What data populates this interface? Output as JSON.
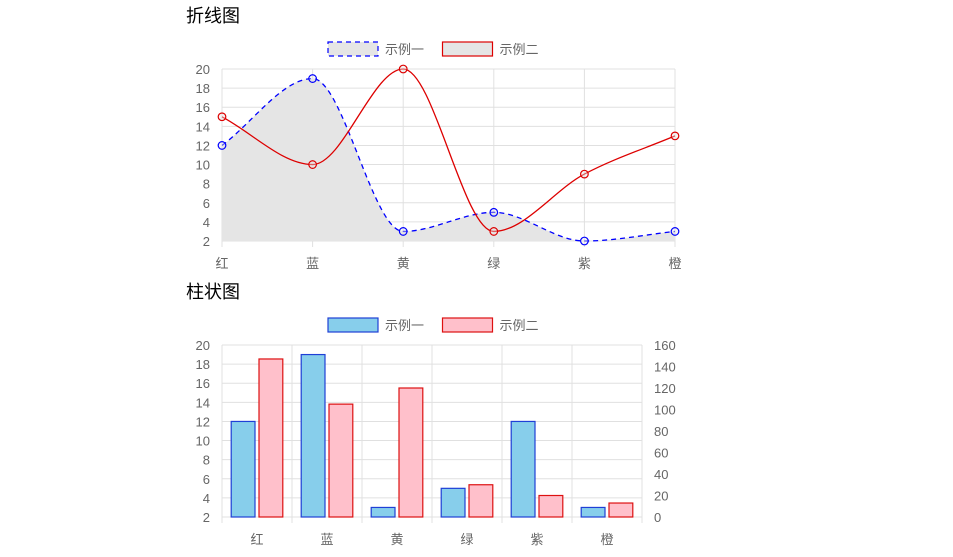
{
  "sections": [
    {
      "title": "折线图"
    },
    {
      "title": "柱状图"
    }
  ],
  "chart_data": [
    {
      "type": "line",
      "categories": [
        "红",
        "蓝",
        "黄",
        "绿",
        "紫",
        "橙"
      ],
      "ylim": [
        2,
        20
      ],
      "yticks": [
        2,
        4,
        6,
        8,
        10,
        12,
        14,
        16,
        18,
        20
      ],
      "grid": true,
      "legend_position": "top-center",
      "series": [
        {
          "name": "示例一",
          "values": [
            12,
            19,
            3,
            5,
            2,
            3
          ],
          "color": "#0000ff",
          "dashed": true,
          "fill": "#e5e5e5",
          "area": true
        },
        {
          "name": "示例二",
          "values": [
            15,
            10,
            20,
            3,
            9,
            13
          ],
          "color": "#dd0000",
          "dashed": false,
          "fill": "#e5e5e5",
          "area": false
        }
      ]
    },
    {
      "type": "bar",
      "categories": [
        "红",
        "蓝",
        "黄",
        "绿",
        "紫",
        "橙"
      ],
      "ylim": [
        2,
        20
      ],
      "yticks": [
        2,
        4,
        6,
        8,
        10,
        12,
        14,
        16,
        18,
        20
      ],
      "y2lim": [
        0,
        160
      ],
      "y2ticks": [
        0,
        20,
        40,
        60,
        80,
        100,
        120,
        140,
        160
      ],
      "grid": true,
      "legend_position": "top-center",
      "series": [
        {
          "name": "示例一",
          "values": [
            12,
            19,
            3,
            5,
            12,
            3
          ],
          "color": "#1f3fd6",
          "fill": "#87ceeb",
          "axis": "left"
        },
        {
          "name": "示例二",
          "values": [
            147,
            105,
            120,
            30,
            20,
            13
          ],
          "color": "#dd1111",
          "fill": "#ffc0cb",
          "axis": "right"
        }
      ]
    }
  ]
}
